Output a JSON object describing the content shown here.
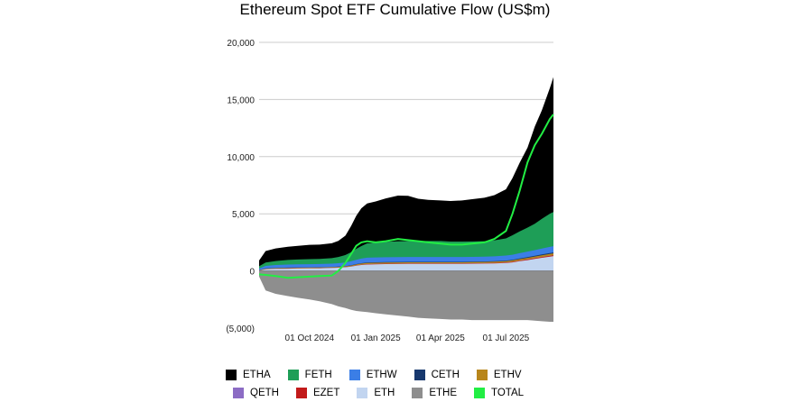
{
  "chart_data": {
    "type": "area",
    "title": "Ethereum Spot ETF Cumulative Flow (US$m)",
    "y_ticks": [
      "20,000",
      "15,000",
      "10,000",
      "5,000",
      "0",
      "(5,000)"
    ],
    "ylim": [
      -5000,
      20000
    ],
    "x_ticks": [
      {
        "label": "01 Oct 2024",
        "date": "2024-10-01"
      },
      {
        "label": "01 Jan 2025",
        "date": "2025-01-01"
      },
      {
        "label": "01 Apr 2025",
        "date": "2025-04-01"
      },
      {
        "label": "01 Jul 2025",
        "date": "2025-07-01"
      }
    ],
    "xlim": [
      "2024-07-23",
      "2025-09-05"
    ],
    "grid": true,
    "legend_position": "bottom",
    "colors": {
      "ETHA": "#000000",
      "FETH": "#1e9e57",
      "ETHW": "#3b7ee6",
      "CETH": "#17386e",
      "ETHV": "#b8861b",
      "QETH": "#8c6cc4",
      "EZET": "#c21a1a",
      "ETH": "#c2d5f0",
      "ETHE": "#8e8e8e",
      "TOTAL": "#22ee44"
    },
    "legend": [
      [
        "ETHA",
        "FETH",
        "ETHW",
        "CETH",
        "ETHV"
      ],
      [
        "QETH",
        "EZET",
        "ETH",
        "ETHE",
        "TOTAL"
      ]
    ],
    "x": [
      "2024-07-23",
      "2024-08-01",
      "2024-08-15",
      "2024-09-01",
      "2024-09-15",
      "2024-10-01",
      "2024-10-15",
      "2024-11-01",
      "2024-11-10",
      "2024-11-20",
      "2024-11-28",
      "2024-12-05",
      "2024-12-12",
      "2024-12-20",
      "2025-01-01",
      "2025-01-15",
      "2025-02-01",
      "2025-02-15",
      "2025-03-01",
      "2025-03-15",
      "2025-04-01",
      "2025-04-15",
      "2025-05-01",
      "2025-05-15",
      "2025-06-01",
      "2025-06-15",
      "2025-07-01",
      "2025-07-10",
      "2025-07-20",
      "2025-07-31",
      "2025-08-10",
      "2025-08-20",
      "2025-08-31",
      "2025-09-05"
    ],
    "series": [
      {
        "name": "ETHE",
        "values": [
          -500,
          -1700,
          -2000,
          -2200,
          -2350,
          -2500,
          -2650,
          -2900,
          -3100,
          -3250,
          -3400,
          -3500,
          -3550,
          -3600,
          -3700,
          -3800,
          -3900,
          -4000,
          -4100,
          -4150,
          -4200,
          -4250,
          -4250,
          -4300,
          -4300,
          -4300,
          -4300,
          -4300,
          -4300,
          -4300,
          -4350,
          -4400,
          -4450,
          -4450
        ]
      },
      {
        "name": "ETH",
        "values": [
          30,
          150,
          180,
          200,
          210,
          220,
          230,
          260,
          280,
          320,
          380,
          460,
          520,
          560,
          580,
          600,
          610,
          620,
          620,
          620,
          620,
          620,
          620,
          630,
          650,
          660,
          700,
          750,
          850,
          950,
          1050,
          1150,
          1250,
          1300
        ]
      },
      {
        "name": "EZET",
        "values": [
          2,
          5,
          10,
          10,
          10,
          10,
          10,
          10,
          10,
          12,
          15,
          20,
          25,
          30,
          30,
          30,
          30,
          30,
          30,
          30,
          30,
          30,
          30,
          30,
          30,
          35,
          40,
          45,
          50,
          55,
          60,
          65,
          70,
          70
        ]
      },
      {
        "name": "QETH",
        "values": [
          2,
          5,
          8,
          10,
          10,
          10,
          10,
          10,
          10,
          10,
          10,
          10,
          10,
          10,
          10,
          10,
          10,
          10,
          10,
          10,
          10,
          10,
          10,
          10,
          10,
          10,
          10,
          10,
          10,
          10,
          10,
          10,
          10,
          10
        ]
      },
      {
        "name": "ETHV",
        "values": [
          20,
          40,
          50,
          50,
          50,
          50,
          50,
          50,
          55,
          60,
          70,
          80,
          90,
          100,
          100,
          100,
          100,
          100,
          100,
          100,
          100,
          100,
          100,
          100,
          100,
          105,
          110,
          115,
          120,
          130,
          140,
          150,
          160,
          160
        ]
      },
      {
        "name": "CETH",
        "values": [
          10,
          15,
          20,
          20,
          20,
          20,
          20,
          20,
          20,
          20,
          25,
          30,
          35,
          40,
          40,
          40,
          40,
          40,
          40,
          40,
          40,
          40,
          40,
          40,
          40,
          40,
          45,
          50,
          55,
          60,
          65,
          70,
          75,
          75
        ]
      },
      {
        "name": "ETHW",
        "values": [
          150,
          230,
          250,
          270,
          280,
          285,
          285,
          290,
          300,
          320,
          350,
          380,
          400,
          420,
          420,
          420,
          420,
          420,
          420,
          420,
          420,
          420,
          420,
          420,
          420,
          430,
          440,
          450,
          470,
          490,
          500,
          520,
          540,
          550
        ]
      },
      {
        "name": "FETH",
        "values": [
          200,
          300,
          350,
          400,
          420,
          440,
          450,
          480,
          550,
          650,
          800,
          950,
          1100,
          1250,
          1300,
          1350,
          1380,
          1400,
          1400,
          1400,
          1400,
          1350,
          1350,
          1350,
          1350,
          1400,
          1500,
          1700,
          1900,
          2100,
          2300,
          2600,
          2900,
          3000
        ]
      },
      {
        "name": "ETHA",
        "values": [
          500,
          1000,
          1100,
          1150,
          1200,
          1250,
          1250,
          1300,
          1400,
          1700,
          2300,
          2900,
          3300,
          3500,
          3600,
          3800,
          4000,
          3950,
          3700,
          3600,
          3550,
          3550,
          3600,
          3700,
          3800,
          3950,
          4300,
          5000,
          6000,
          7000,
          8500,
          9500,
          11000,
          11800
        ]
      },
      {
        "name": "TOTAL",
        "values": [
          -300,
          -350,
          -450,
          -600,
          -550,
          -500,
          -450,
          -400,
          0,
          700,
          1500,
          2200,
          2500,
          2600,
          2500,
          2600,
          2800,
          2700,
          2600,
          2500,
          2400,
          2300,
          2300,
          2400,
          2500,
          2800,
          3500,
          5000,
          7000,
          9500,
          11000,
          12000,
          13300,
          13700
        ]
      }
    ]
  }
}
